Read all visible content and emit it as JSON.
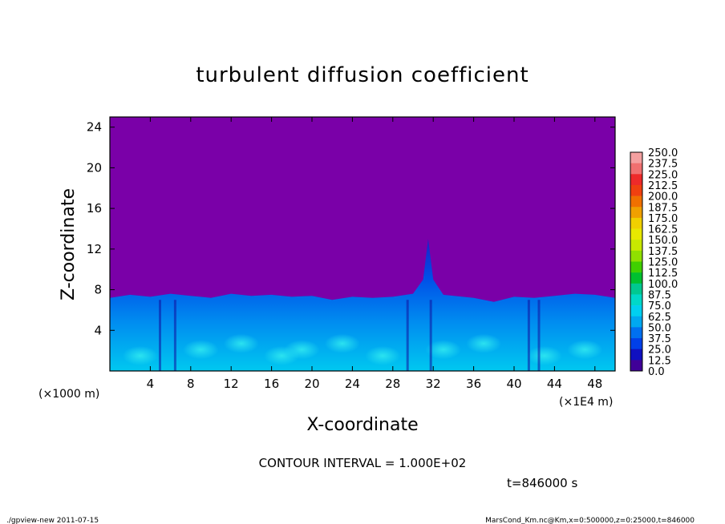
{
  "chart_data": {
    "type": "heatmap",
    "title": "turbulent diffusion coefficient",
    "xlabel": "X-coordinate",
    "ylabel": "Z-coordinate",
    "x_unit_left": "(×1000 m)",
    "x_unit_right": "(×1E4 m)",
    "xlim": [
      0,
      50
    ],
    "ylim": [
      0,
      25
    ],
    "x_ticks": [
      "4",
      "8",
      "12",
      "16",
      "20",
      "24",
      "28",
      "32",
      "36",
      "40",
      "44",
      "48"
    ],
    "x_tick_values": [
      4,
      8,
      12,
      16,
      20,
      24,
      28,
      32,
      36,
      40,
      44,
      48
    ],
    "y_ticks": [
      "4",
      "8",
      "12",
      "16",
      "20",
      "24"
    ],
    "y_tick_values": [
      4,
      8,
      12,
      16,
      20,
      24
    ],
    "background_color": "#7a00a8",
    "colorbar": {
      "labels": [
        "250.0",
        "237.5",
        "225.0",
        "212.5",
        "200.0",
        "187.5",
        "175.0",
        "162.5",
        "150.0",
        "137.5",
        "125.0",
        "112.5",
        "100.0",
        "87.5",
        "75.0",
        "62.5",
        "50.0",
        "37.5",
        "25.0",
        "12.5",
        "0.0"
      ],
      "colors": [
        "#f4a0a0",
        "#f07070",
        "#ee2a2a",
        "#f04010",
        "#f07000",
        "#f0a000",
        "#f0d000",
        "#e8e800",
        "#c8e800",
        "#90e000",
        "#40d000",
        "#00c030",
        "#00c890",
        "#00d8c8",
        "#00d0f0",
        "#00a8f0",
        "#0070f0",
        "#0040e8",
        "#1010c0",
        "#400098"
      ]
    },
    "boundary_layer_top": [
      [
        0,
        7.2
      ],
      [
        2,
        7.5
      ],
      [
        4,
        7.3
      ],
      [
        6,
        7.6
      ],
      [
        8,
        7.4
      ],
      [
        10,
        7.2
      ],
      [
        12,
        7.6
      ],
      [
        14,
        7.4
      ],
      [
        16,
        7.5
      ],
      [
        18,
        7.3
      ],
      [
        20,
        7.4
      ],
      [
        22,
        7.0
      ],
      [
        24,
        7.3
      ],
      [
        26,
        7.2
      ],
      [
        28,
        7.3
      ],
      [
        30,
        7.6
      ],
      [
        31,
        9.0
      ],
      [
        31.5,
        13.0
      ],
      [
        32,
        9.0
      ],
      [
        33,
        7.5
      ],
      [
        36,
        7.2
      ],
      [
        38,
        6.8
      ],
      [
        40,
        7.3
      ],
      [
        42,
        7.2
      ],
      [
        44,
        7.4
      ],
      [
        46,
        7.6
      ],
      [
        48,
        7.5
      ],
      [
        50,
        7.2
      ]
    ],
    "contour_interval": "CONTOUR INTERVAL = 1.000E+02",
    "time": "t=846000 s"
  },
  "footer": {
    "left": "./gpview-new   2011-07-15",
    "right": "MarsCond_Km.nc@Km,x=0:500000,z=0:25000,t=846000"
  }
}
